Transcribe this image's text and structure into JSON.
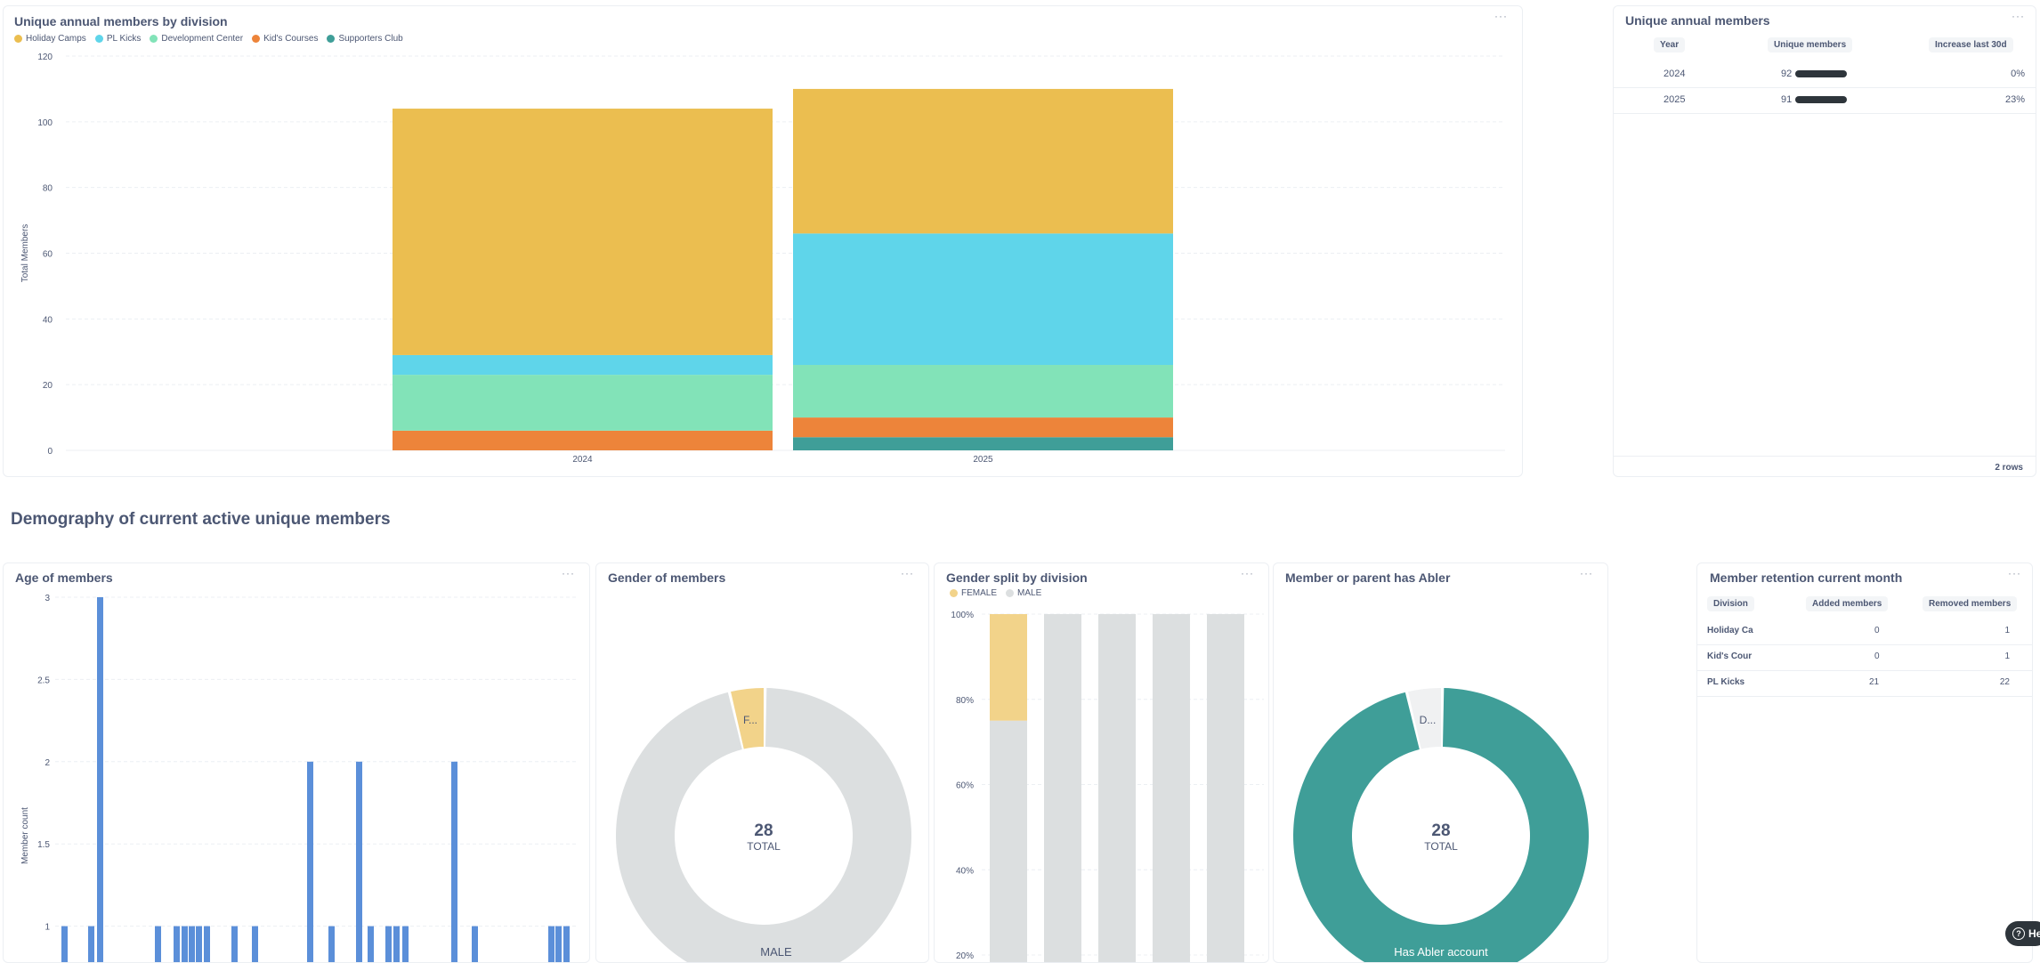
{
  "division_chart": {
    "title": "Unique annual members by division",
    "ylabel": "Total Members",
    "legend": [
      {
        "label": "Holiday Camps",
        "color": "#ebbe50"
      },
      {
        "label": "PL Kicks",
        "color": "#5fd5ea"
      },
      {
        "label": "Development Center",
        "color": "#82e3b8"
      },
      {
        "label": "Kid's Courses",
        "color": "#ed843a"
      },
      {
        "label": "Supporters Club",
        "color": "#3f9e98"
      }
    ]
  },
  "annual_table": {
    "title": "Unique annual members",
    "headers": [
      "Year",
      "Unique members",
      "Increase last 30d"
    ],
    "rows": [
      {
        "year": "2024",
        "members": "92",
        "increase": "0%"
      },
      {
        "year": "2025",
        "members": "91",
        "increase": "23%"
      }
    ],
    "footer": "2 rows"
  },
  "section": {
    "title": "Demography of current active unique members"
  },
  "age_chart": {
    "title": "Age of members",
    "ylabel": "Member count"
  },
  "gender_chart": {
    "title": "Gender of members",
    "total": "28",
    "total_label": "TOTAL",
    "slice_label_small": "F...",
    "slice_label_large": "MALE"
  },
  "gender_division": {
    "title": "Gender split by division",
    "legend": [
      {
        "label": "FEMALE",
        "color": "#f2d38a"
      },
      {
        "label": "MALE",
        "color": "#dcdfe0"
      }
    ]
  },
  "abler_chart": {
    "title": "Member or parent has Abler",
    "total": "28",
    "total_label": "TOTAL",
    "slice_label_small": "D...",
    "slice_label_large": "Has Abler account"
  },
  "retention": {
    "title": "Member retention current month",
    "headers": [
      "Division",
      "Added members",
      "Removed members"
    ],
    "rows": [
      {
        "division": "Holiday Ca",
        "added": "0",
        "removed": "1"
      },
      {
        "division": "Kid's Cour",
        "added": "0",
        "removed": "1"
      },
      {
        "division": "PL Kicks",
        "added": "21",
        "removed": "22"
      }
    ]
  },
  "help_button": {
    "label": "He"
  },
  "menu_icon": "···",
  "chart_data": [
    {
      "type": "bar",
      "stacked": true,
      "title": "Unique annual members by division",
      "ylabel": "Total Members",
      "ylim": [
        0,
        120
      ],
      "yticks": [
        0,
        20,
        40,
        60,
        80,
        100,
        120
      ],
      "categories": [
        "2024",
        "2025"
      ],
      "series": [
        {
          "name": "Supporters Club",
          "color": "#3f9e98",
          "values": [
            0,
            4
          ]
        },
        {
          "name": "Kid's Courses",
          "color": "#ed843a",
          "values": [
            6,
            6
          ]
        },
        {
          "name": "Development Center",
          "color": "#82e3b8",
          "values": [
            17,
            16
          ]
        },
        {
          "name": "PL Kicks",
          "color": "#5fd5ea",
          "values": [
            6,
            40
          ]
        },
        {
          "name": "Holiday Camps",
          "color": "#ebbe50",
          "values": [
            75,
            44
          ]
        }
      ]
    },
    {
      "type": "bar",
      "title": "Age of members",
      "ylabel": "Member count",
      "ylim": [
        0.5,
        3
      ],
      "yticks": [
        1,
        1.5,
        2,
        2.5,
        3
      ],
      "values": [
        1,
        1,
        3,
        1,
        1,
        1,
        1,
        1,
        1,
        1,
        1,
        2,
        1,
        2,
        1,
        1,
        1,
        1,
        2,
        1,
        1,
        1,
        1
      ],
      "color": "#5b8fd9"
    },
    {
      "type": "pie",
      "title": "Gender of members",
      "total": 28,
      "slices": [
        {
          "label": "FEMALE",
          "value": 1,
          "color": "#f2d38a"
        },
        {
          "label": "MALE",
          "value": 27,
          "color": "#dcdfe0"
        }
      ]
    },
    {
      "type": "bar",
      "stacked": true,
      "title": "Gender split by division",
      "yticks": [
        "20%",
        "40%",
        "60%",
        "80%",
        "100%"
      ],
      "series": [
        {
          "name": "MALE",
          "color": "#dcdfe0",
          "values": [
            75,
            100,
            100,
            100,
            100
          ]
        },
        {
          "name": "FEMALE",
          "color": "#f2d38a",
          "values": [
            25,
            0,
            0,
            0,
            0
          ]
        }
      ]
    },
    {
      "type": "pie",
      "title": "Member or parent has Abler",
      "total": 28,
      "slices": [
        {
          "label": "Does not have Abler",
          "value": 1,
          "color": "#f0f1f2"
        },
        {
          "label": "Has Abler account",
          "value": 27,
          "color": "#3f9e98"
        }
      ]
    }
  ]
}
